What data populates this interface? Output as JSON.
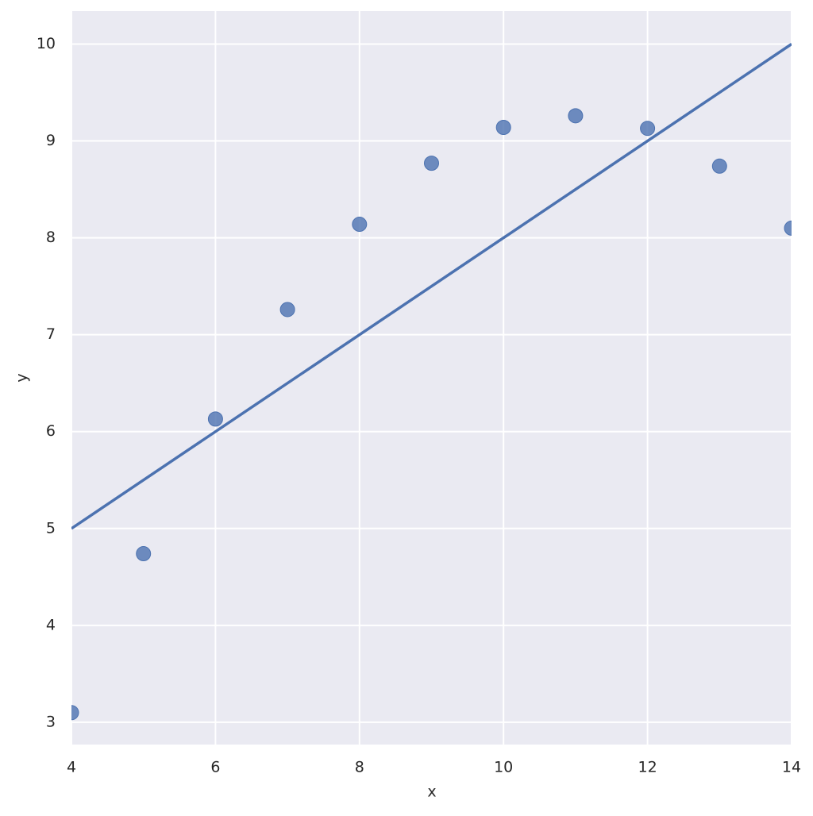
{
  "chart_data": {
    "type": "scatter",
    "x_label": "x",
    "y_label": "y",
    "xlim": [
      4,
      14
    ],
    "ylim": [
      2.77,
      10.34
    ],
    "xticks": [
      4,
      6,
      8,
      10,
      12,
      14
    ],
    "yticks": [
      3,
      4,
      5,
      6,
      7,
      8,
      9,
      10
    ],
    "grid": true,
    "series": [
      {
        "type": "scatter",
        "color": "#4c72b0",
        "x": [
          4,
          5,
          6,
          7,
          8,
          9,
          10,
          11,
          12,
          13,
          14
        ],
        "values": [
          3.1,
          4.74,
          6.13,
          7.26,
          8.14,
          8.77,
          9.14,
          9.26,
          9.13,
          8.74,
          8.1
        ]
      },
      {
        "type": "line",
        "color": "#4c72b0",
        "x": [
          4,
          14
        ],
        "values": [
          5.0,
          10.0
        ]
      }
    ]
  }
}
